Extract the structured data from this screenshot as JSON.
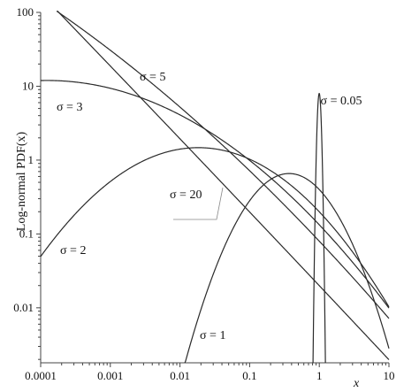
{
  "chart_data": {
    "type": "line",
    "xscale": "log",
    "yscale": "log",
    "xlim": [
      0.0001,
      10
    ],
    "ylim": [
      0.0018,
      100
    ],
    "xlabel": "x",
    "ylabel": "Log-normal PDF(x)",
    "x_ticks": [
      {
        "value": 0.0001,
        "label": "0.0001"
      },
      {
        "value": 0.001,
        "label": "0.001"
      },
      {
        "value": 0.01,
        "label": "0.01"
      },
      {
        "value": 0.1,
        "label": "0.1"
      },
      {
        "value": 1,
        "label": "1"
      },
      {
        "value": 10,
        "label": "10"
      }
    ],
    "y_ticks": [
      {
        "value": 0.01,
        "label": "0.01"
      },
      {
        "value": 0.1,
        "label": "0.1"
      },
      {
        "value": 1,
        "label": "1"
      },
      {
        "value": 10,
        "label": "10"
      },
      {
        "value": 100,
        "label": "100"
      }
    ],
    "grid": false,
    "series": [
      {
        "name": "σ = 0.05",
        "sigma": 0.05
      },
      {
        "name": "σ = 1",
        "sigma": 1
      },
      {
        "name": "σ = 2",
        "sigma": 2
      },
      {
        "name": "σ = 3",
        "sigma": 3
      },
      {
        "name": "σ = 5",
        "sigma": 5
      },
      {
        "name": "σ = 20",
        "sigma": 20
      }
    ]
  }
}
